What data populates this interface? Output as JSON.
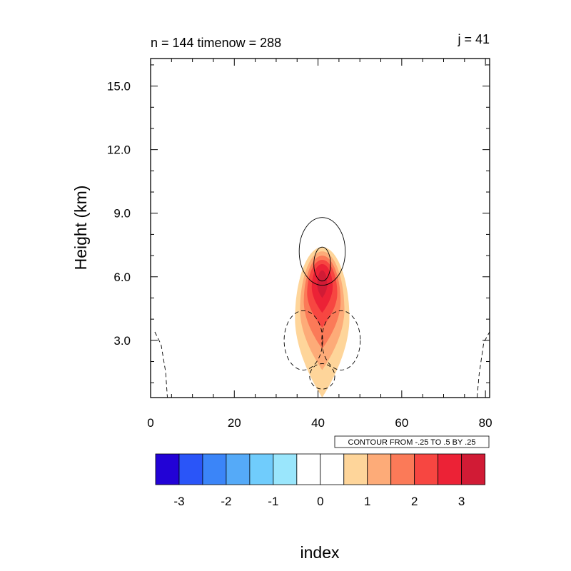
{
  "chart_data": {
    "type": "heatmap",
    "title_left": "n = 144 timenow = 288",
    "title_right": "j = 41",
    "xlabel": "index",
    "ylabel": "Height (km)",
    "xlim": [
      0,
      81
    ],
    "ylim": [
      0.3,
      16.3
    ],
    "x_ticks": [
      0,
      20,
      40,
      60,
      80
    ],
    "x_tick_labels": [
      "0",
      "20",
      "40",
      "60",
      "80"
    ],
    "y_ticks": [
      3,
      6,
      9,
      12,
      15
    ],
    "y_tick_labels": [
      "3.0",
      "6.0",
      "9.0",
      "12.0",
      "15.0"
    ],
    "info_label": "CONTOUR FROM -.25 TO .5 BY .25",
    "filled_levels": [
      {
        "level": 0.5,
        "color": "#fed59a",
        "center": [
          41,
          4.0
        ],
        "half_width": 6.5,
        "y_min": 0.3,
        "y_max": 7.4
      },
      {
        "level": 1.0,
        "color": "#fdab78",
        "center": [
          41,
          4.4
        ],
        "half_width": 5.3,
        "y_min": 1.6,
        "y_max": 7.2
      },
      {
        "level": 1.5,
        "color": "#fb7a58",
        "center": [
          41,
          4.8
        ],
        "half_width": 4.4,
        "y_min": 2.6,
        "y_max": 7.0
      },
      {
        "level": 2.0,
        "color": "#f74641",
        "center": [
          41,
          5.2
        ],
        "half_width": 3.6,
        "y_min": 3.6,
        "y_max": 6.8
      },
      {
        "level": 2.5,
        "color": "#ec2236",
        "center": [
          41,
          5.5
        ],
        "half_width": 2.5,
        "y_min": 4.3,
        "y_max": 6.6
      },
      {
        "level": 3.0,
        "color": "#d11b35",
        "center": [
          41,
          5.6
        ],
        "half_width": 1.2,
        "y_min": 5.0,
        "y_max": 6.3
      }
    ],
    "contour_lines": [
      {
        "level": 0.25,
        "style": "solid",
        "center": [
          41,
          7.2
        ],
        "rx": 5.5,
        "ry": 1.6
      },
      {
        "level": 0.5,
        "style": "solid",
        "center": [
          41,
          6.6
        ],
        "rx": 2.0,
        "ry": 0.8
      },
      {
        "level": -0.25,
        "style": "dashed",
        "center": [
          36.5,
          3.0
        ],
        "rx": 4.6,
        "ry": 1.4
      },
      {
        "level": -0.25,
        "style": "dashed",
        "center": [
          45.5,
          3.0
        ],
        "rx": 4.6,
        "ry": 1.4
      },
      {
        "level": -0.25,
        "style": "dashed",
        "center": [
          41,
          1.3
        ],
        "rx": 3.0,
        "ry": 0.6
      },
      {
        "level": -0.25,
        "style": "dashed",
        "edge": "left",
        "points": [
          [
            1,
            3.4
          ],
          [
            2.5,
            2.8
          ],
          [
            3.6,
            1.5
          ],
          [
            4,
            0.3
          ]
        ]
      },
      {
        "level": -0.25,
        "style": "dashed",
        "edge": "right",
        "points": [
          [
            78,
            0.3
          ],
          [
            78.5,
            1.4
          ],
          [
            79.6,
            2.9
          ],
          [
            81,
            3.4
          ]
        ]
      }
    ],
    "colorbar": {
      "colors": [
        "#2202d6",
        "#2a55f8",
        "#3b85f8",
        "#55aaf8",
        "#70ccfc",
        "#9ae6fc",
        "#ffffff",
        "#ffffff",
        "#fed59a",
        "#fdab78",
        "#fb7a58",
        "#f74641",
        "#ec2236",
        "#d11b35"
      ],
      "labels": [
        "-3",
        "-2",
        "-1",
        "0",
        "1",
        "2",
        "3"
      ]
    }
  }
}
